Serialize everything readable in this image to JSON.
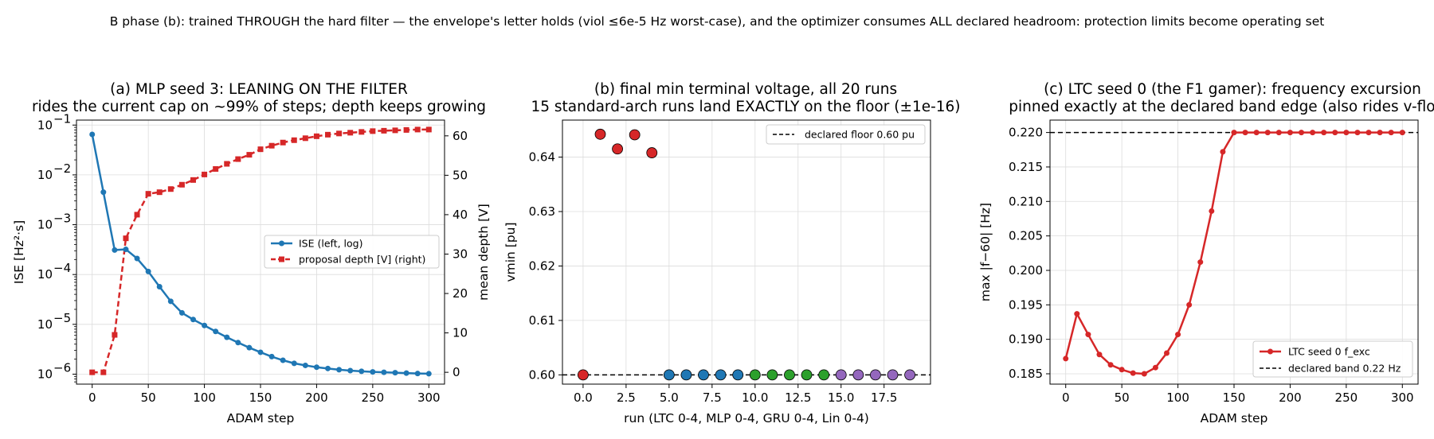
{
  "suptitle": "B phase (b): trained THROUGH the hard filter — the envelope's letter holds (viol ≤6e-5 Hz worst-case), and the optimizer consumes ALL declared headroom: protection limits become operating set",
  "chart_data": [
    {
      "id": "a",
      "type": "line",
      "title_line1": "(a) MLP seed 3: LEANING ON THE FILTER",
      "title_line2": "rides the current cap on ~99% of steps; depth keeps growing",
      "xlabel": "ADAM step",
      "ylabel_left": "ISE [Hz²·s]",
      "ylabel_right": "mean depth [V]",
      "xlim": [
        -14,
        314
      ],
      "xticks": [
        0,
        50,
        100,
        150,
        200,
        250,
        300
      ],
      "ylim_left_log10": [
        -6.2,
        -0.9
      ],
      "yticks_left": [
        {
          "exp": -6,
          "label": "10",
          "sup": "−6"
        },
        {
          "exp": -5,
          "label": "10",
          "sup": "−5"
        },
        {
          "exp": -4,
          "label": "10",
          "sup": "−4"
        },
        {
          "exp": -3,
          "label": "10",
          "sup": "−3"
        },
        {
          "exp": -2,
          "label": "10",
          "sup": "−2"
        },
        {
          "exp": -1,
          "label": "10",
          "sup": "−1"
        }
      ],
      "ylim_right": [
        -3,
        64
      ],
      "yticks_right": [
        0,
        10,
        20,
        30,
        40,
        50,
        60
      ],
      "grid": true,
      "legend_placement": "center-right",
      "series": [
        {
          "name": "ISE (left, log)",
          "axis": "left",
          "color": "#1f77b4",
          "marker": "circle",
          "dash": "solid",
          "x": [
            0,
            10,
            20,
            30,
            40,
            50,
            60,
            70,
            80,
            90,
            100,
            110,
            120,
            130,
            140,
            150,
            160,
            170,
            180,
            190,
            200,
            210,
            220,
            230,
            240,
            250,
            260,
            270,
            280,
            290,
            300
          ],
          "y": [
            0.065,
            0.0045,
            0.00031,
            0.00032,
            0.00021,
            0.000115,
            5.7e-05,
            2.9e-05,
            1.7e-05,
            1.25e-05,
            9.5e-06,
            7.2e-06,
            5.5e-06,
            4.3e-06,
            3.4e-06,
            2.75e-06,
            2.25e-06,
            1.9e-06,
            1.65e-06,
            1.5e-06,
            1.38e-06,
            1.3e-06,
            1.23e-06,
            1.18e-06,
            1.14e-06,
            1.11e-06,
            1.09e-06,
            1.07e-06,
            1.05e-06,
            1.03e-06,
            1.02e-06
          ]
        },
        {
          "name": "proposal depth [V] (right)",
          "axis": "right",
          "color": "#d62728",
          "marker": "square",
          "dash": "dashed",
          "x": [
            0,
            10,
            20,
            30,
            40,
            50,
            60,
            70,
            80,
            90,
            100,
            110,
            120,
            130,
            140,
            150,
            160,
            170,
            180,
            190,
            200,
            210,
            220,
            230,
            240,
            250,
            260,
            270,
            280,
            290,
            300
          ],
          "y": [
            0,
            0,
            9.5,
            34,
            40,
            45.3,
            45.7,
            46.5,
            47.6,
            48.8,
            50.2,
            51.6,
            52.9,
            54.1,
            55.2,
            56.6,
            57.5,
            58.3,
            58.9,
            59.4,
            59.9,
            60.3,
            60.6,
            60.8,
            61,
            61.2,
            61.3,
            61.4,
            61.5,
            61.6,
            61.6
          ]
        }
      ]
    },
    {
      "id": "b",
      "type": "scatter",
      "title_line1": "(b) final min terminal voltage, all 20 runs",
      "title_line2": "15 standard-arch runs land EXACTLY on the floor (±1e-16)",
      "xlabel": "run (LTC 0-4, MLP 0-4, GRU 0-4, Lin 0-4)",
      "ylabel": "vmin [pu]",
      "xlim": [
        -1.2,
        20.2
      ],
      "xticks": [
        0.0,
        2.5,
        5.0,
        7.5,
        10.0,
        12.5,
        15.0,
        17.5
      ],
      "xtick_labels": [
        "0.0",
        "2.5",
        "5.0",
        "7.5",
        "10.0",
        "12.5",
        "15.0",
        "17.5"
      ],
      "ylim": [
        0.5983,
        0.6468
      ],
      "yticks": [
        0.6,
        0.61,
        0.62,
        0.63,
        0.64
      ],
      "ytick_labels": [
        "0.60",
        "0.61",
        "0.62",
        "0.63",
        "0.64"
      ],
      "grid": true,
      "legend_placement": "upper-right",
      "points": [
        {
          "x": 0,
          "y": 0.6,
          "color": "#d62728"
        },
        {
          "x": 1,
          "y": 0.6442,
          "color": "#d62728"
        },
        {
          "x": 2,
          "y": 0.6415,
          "color": "#d62728"
        },
        {
          "x": 3,
          "y": 0.6441,
          "color": "#d62728"
        },
        {
          "x": 4,
          "y": 0.6408,
          "color": "#d62728"
        },
        {
          "x": 5,
          "y": 0.6,
          "color": "#1f77b4"
        },
        {
          "x": 6,
          "y": 0.6,
          "color": "#1f77b4"
        },
        {
          "x": 7,
          "y": 0.6,
          "color": "#1f77b4"
        },
        {
          "x": 8,
          "y": 0.6,
          "color": "#1f77b4"
        },
        {
          "x": 9,
          "y": 0.6,
          "color": "#1f77b4"
        },
        {
          "x": 10,
          "y": 0.6,
          "color": "#2ca02c"
        },
        {
          "x": 11,
          "y": 0.6,
          "color": "#2ca02c"
        },
        {
          "x": 12,
          "y": 0.6,
          "color": "#2ca02c"
        },
        {
          "x": 13,
          "y": 0.6,
          "color": "#2ca02c"
        },
        {
          "x": 14,
          "y": 0.6,
          "color": "#2ca02c"
        },
        {
          "x": 15,
          "y": 0.6,
          "color": "#9467bd"
        },
        {
          "x": 16,
          "y": 0.6,
          "color": "#9467bd"
        },
        {
          "x": 17,
          "y": 0.6,
          "color": "#9467bd"
        },
        {
          "x": 18,
          "y": 0.6,
          "color": "#9467bd"
        },
        {
          "x": 19,
          "y": 0.6,
          "color": "#9467bd"
        }
      ],
      "hline": {
        "y": 0.6,
        "label": "declared floor 0.60 pu",
        "color": "#000000"
      }
    },
    {
      "id": "c",
      "type": "line",
      "title_line1": "(c) LTC seed 0 (the F1 gamer): frequency excursion",
      "title_line2": "pinned exactly at the declared band edge (also rides v-floor)",
      "xlabel": "ADAM step",
      "ylabel": "max |f−60| [Hz]",
      "xlim": [
        -14,
        314
      ],
      "xticks": [
        0,
        50,
        100,
        150,
        200,
        250,
        300
      ],
      "ylim": [
        0.1835,
        0.2218
      ],
      "yticks": [
        0.185,
        0.19,
        0.195,
        0.2,
        0.205,
        0.21,
        0.215,
        0.22
      ],
      "ytick_labels": [
        "0.185",
        "0.190",
        "0.195",
        "0.200",
        "0.205",
        "0.210",
        "0.215",
        "0.220"
      ],
      "grid": true,
      "legend_placement": "lower-right",
      "series": [
        {
          "name": "LTC seed 0 f_exc",
          "color": "#d62728",
          "marker": "circle",
          "dash": "solid",
          "x": [
            0,
            10,
            20,
            30,
            40,
            50,
            60,
            70,
            80,
            90,
            100,
            110,
            120,
            130,
            140,
            150,
            160,
            170,
            180,
            190,
            200,
            210,
            220,
            230,
            240,
            250,
            260,
            270,
            280,
            290,
            300
          ],
          "y": [
            0.1872,
            0.1937,
            0.1907,
            0.1878,
            0.1863,
            0.1856,
            0.1851,
            0.185,
            0.1859,
            0.188,
            0.1907,
            0.195,
            0.2012,
            0.2086,
            0.2172,
            0.22,
            0.22,
            0.22,
            0.22,
            0.22,
            0.22,
            0.22,
            0.22,
            0.22,
            0.22,
            0.22,
            0.22,
            0.22,
            0.22,
            0.22,
            0.22
          ]
        }
      ],
      "hline": {
        "y": 0.22,
        "label": "declared band 0.22 Hz",
        "color": "#000000"
      }
    }
  ]
}
